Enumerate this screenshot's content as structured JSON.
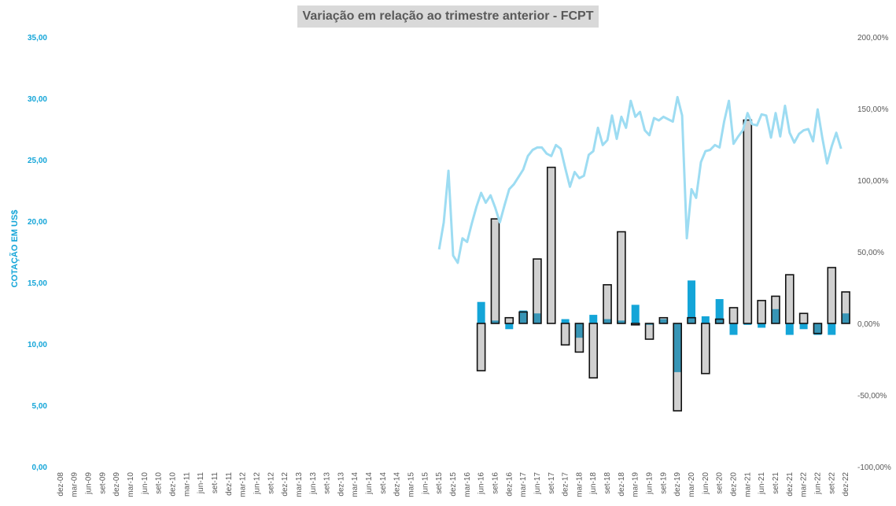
{
  "chart_data": {
    "type": "combo",
    "title": "Variação em relação ao trimestre anterior - FCPT",
    "ylabel": "COTAÇÃO EM US$",
    "y_left": {
      "range": [
        0,
        35
      ],
      "ticks": [
        "0,00",
        "5,00",
        "10,00",
        "15,00",
        "20,00",
        "25,00",
        "30,00",
        "35,00"
      ]
    },
    "y_right": {
      "range": [
        -100,
        200
      ],
      "ticks": [
        "-100,00%",
        "-50,00%",
        "0,00%",
        "50,00%",
        "100,00%",
        "150,00%",
        "200,00%"
      ]
    },
    "x_labels": [
      "dez-08",
      "mar-09",
      "jun-09",
      "set-09",
      "dez-09",
      "mar-10",
      "jun-10",
      "set-10",
      "dez-10",
      "mar-11",
      "jun-11",
      "set-11",
      "dez-11",
      "mar-12",
      "jun-12",
      "set-12",
      "dez-12",
      "mar-13",
      "jun-13",
      "set-13",
      "dez-13",
      "mar-14",
      "jun-14",
      "set-14",
      "dez-14",
      "mar-15",
      "jun-15",
      "set-15",
      "dez-15",
      "mar-16",
      "jun-16",
      "set-16",
      "dez-16",
      "mar-17",
      "jun-17",
      "set-17",
      "dez-17",
      "mar-18",
      "jun-18",
      "set-18",
      "dez-18",
      "mar-19",
      "jun-19",
      "set-19",
      "dez-19",
      "mar-20",
      "jun-20",
      "set-20",
      "dez-20",
      "mar-21",
      "jun-21",
      "set-21",
      "dez-21",
      "mar-22",
      "jun-22",
      "set-22",
      "dez-22"
    ],
    "series": [
      {
        "type": "line",
        "axis": "left",
        "color": "#9ddcf2",
        "points": [
          [
            27.0,
            17.7
          ],
          [
            27.33,
            19.9
          ],
          [
            27.67,
            24.1
          ],
          [
            28.0,
            17.2
          ],
          [
            28.33,
            16.6
          ],
          [
            28.67,
            18.6
          ],
          [
            29.0,
            18.3
          ],
          [
            29.33,
            19.8
          ],
          [
            29.67,
            21.2
          ],
          [
            30.0,
            22.3
          ],
          [
            30.33,
            21.5
          ],
          [
            30.67,
            22.1
          ],
          [
            31.0,
            21.1
          ],
          [
            31.33,
            19.9
          ],
          [
            31.67,
            21.3
          ],
          [
            32.0,
            22.6
          ],
          [
            32.33,
            23.0
          ],
          [
            32.67,
            23.6
          ],
          [
            33.0,
            24.2
          ],
          [
            33.33,
            25.3
          ],
          [
            33.67,
            25.8
          ],
          [
            34.0,
            26.0
          ],
          [
            34.33,
            26.0
          ],
          [
            34.67,
            25.5
          ],
          [
            35.0,
            25.3
          ],
          [
            35.33,
            26.2
          ],
          [
            35.67,
            25.9
          ],
          [
            36.0,
            24.3
          ],
          [
            36.33,
            22.8
          ],
          [
            36.67,
            24.0
          ],
          [
            37.0,
            23.5
          ],
          [
            37.33,
            23.7
          ],
          [
            37.67,
            25.4
          ],
          [
            38.0,
            25.7
          ],
          [
            38.33,
            27.6
          ],
          [
            38.67,
            26.2
          ],
          [
            39.0,
            26.6
          ],
          [
            39.33,
            28.6
          ],
          [
            39.67,
            26.7
          ],
          [
            40.0,
            28.5
          ],
          [
            40.33,
            27.6
          ],
          [
            40.67,
            29.8
          ],
          [
            41.0,
            28.5
          ],
          [
            41.33,
            28.9
          ],
          [
            41.67,
            27.4
          ],
          [
            42.0,
            27.0
          ],
          [
            42.33,
            28.4
          ],
          [
            42.67,
            28.2
          ],
          [
            43.0,
            28.5
          ],
          [
            43.33,
            28.3
          ],
          [
            43.67,
            28.1
          ],
          [
            44.0,
            30.1
          ],
          [
            44.33,
            28.6
          ],
          [
            44.67,
            18.6
          ],
          [
            45.0,
            22.6
          ],
          [
            45.33,
            21.9
          ],
          [
            45.67,
            24.8
          ],
          [
            46.0,
            25.7
          ],
          [
            46.33,
            25.8
          ],
          [
            46.67,
            26.2
          ],
          [
            47.0,
            26.0
          ],
          [
            47.33,
            28.1
          ],
          [
            47.67,
            29.8
          ],
          [
            48.0,
            26.3
          ],
          [
            48.33,
            26.9
          ],
          [
            48.67,
            27.4
          ],
          [
            49.0,
            28.8
          ],
          [
            49.33,
            27.9
          ],
          [
            49.67,
            27.8
          ],
          [
            50.0,
            28.7
          ],
          [
            50.33,
            28.6
          ],
          [
            50.67,
            26.8
          ],
          [
            51.0,
            28.8
          ],
          [
            51.33,
            26.9
          ],
          [
            51.67,
            29.4
          ],
          [
            52.0,
            27.2
          ],
          [
            52.33,
            26.4
          ],
          [
            52.67,
            27.1
          ],
          [
            53.0,
            27.4
          ],
          [
            53.33,
            27.5
          ],
          [
            53.67,
            26.5
          ],
          [
            54.0,
            29.1
          ],
          [
            54.33,
            26.8
          ],
          [
            54.67,
            24.7
          ],
          [
            55.0,
            26.1
          ],
          [
            55.33,
            27.2
          ],
          [
            55.67,
            25.9
          ]
        ]
      },
      {
        "type": "bar",
        "name": "blue",
        "axis": "right",
        "color": "#14a5d8",
        "overlap_color": "#1e6fa8",
        "x": [
          30,
          31,
          32,
          33,
          34,
          36,
          37,
          38,
          39,
          40,
          41,
          42,
          43,
          44,
          45,
          46,
          47,
          48,
          49,
          50,
          51,
          52,
          53,
          54,
          55,
          56
        ],
        "values": [
          15,
          2,
          -4,
          9,
          7,
          3,
          -10,
          6,
          3,
          2,
          13,
          -1,
          3,
          -34,
          30,
          5,
          17,
          -8,
          -1,
          -3,
          10,
          -8,
          -4,
          -8,
          -8,
          7
        ]
      },
      {
        "type": "bar",
        "name": "outline",
        "axis": "right",
        "color": "#d9d9d9",
        "border": "#111111",
        "x": [
          30,
          31,
          32,
          33,
          34,
          35,
          36,
          37,
          38,
          39,
          40,
          41,
          42,
          43,
          44,
          45,
          46,
          47,
          48,
          49,
          50,
          51,
          52,
          53,
          54,
          55,
          56
        ],
        "values": [
          -33,
          73,
          4,
          8,
          45,
          109,
          -15,
          -20,
          -38,
          27,
          64,
          -1,
          -11,
          4,
          -61,
          4,
          -35,
          3,
          11,
          142,
          16,
          19,
          34,
          7,
          -7,
          39,
          22
        ]
      }
    ]
  }
}
